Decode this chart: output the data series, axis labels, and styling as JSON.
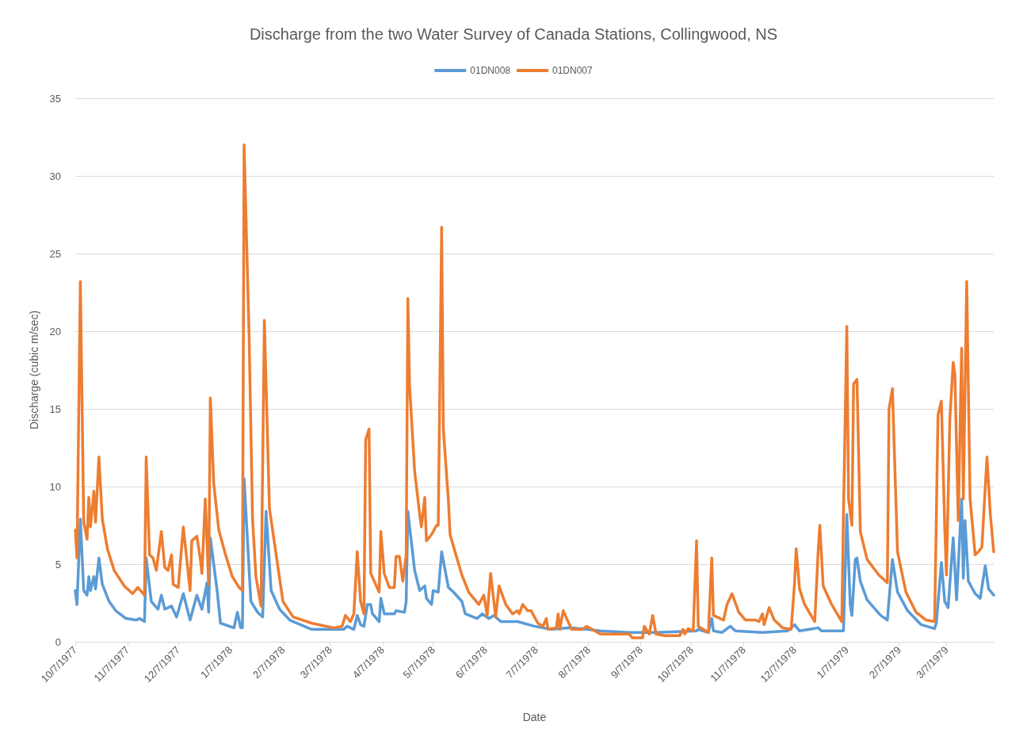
{
  "chart_data": {
    "type": "line",
    "title": "Discharge from the two Water Survey of Canada Stations, Collingwood, NS",
    "xlabel": "Date",
    "ylabel": "Discharge (cubic m/sec)",
    "xlim": [
      "1977-10-07",
      "1979-04-04"
    ],
    "xticks": [
      {
        "value": "1977-10-07",
        "label": "10/7/1977"
      },
      {
        "value": "1977-11-07",
        "label": "11/7/1977"
      },
      {
        "value": "1977-12-07",
        "label": "12/7/1977"
      },
      {
        "value": "1978-01-07",
        "label": "1/7/1978"
      },
      {
        "value": "1978-02-07",
        "label": "2/7/1978"
      },
      {
        "value": "1978-03-07",
        "label": "3/7/1978"
      },
      {
        "value": "1978-04-07",
        "label": "4/7/1978"
      },
      {
        "value": "1978-05-07",
        "label": "5/7/1978"
      },
      {
        "value": "1978-06-07",
        "label": "6/7/1978"
      },
      {
        "value": "1978-07-07",
        "label": "7/7/1978"
      },
      {
        "value": "1978-08-07",
        "label": "8/7/1978"
      },
      {
        "value": "1978-09-07",
        "label": "9/7/1978"
      },
      {
        "value": "1978-10-07",
        "label": "10/7/1978"
      },
      {
        "value": "1978-11-07",
        "label": "11/7/1978"
      },
      {
        "value": "1978-12-07",
        "label": "12/7/1978"
      },
      {
        "value": "1979-01-07",
        "label": "1/7/1979"
      },
      {
        "value": "1979-02-07",
        "label": "2/7/1979"
      },
      {
        "value": "1979-03-07",
        "label": "3/7/1979"
      }
    ],
    "ylim": [
      0,
      35
    ],
    "yticks": [
      0,
      5,
      10,
      15,
      20,
      25,
      30,
      35
    ],
    "grid": "y",
    "legend": "top",
    "marker": "none",
    "line_style": "solid",
    "series": [
      {
        "name": "01DN008",
        "color": "#5b9bd5",
        "x": [
          "1977-10-07",
          "1977-10-08",
          "1977-10-10",
          "1977-10-12",
          "1977-10-14",
          "1977-10-15",
          "1977-10-16",
          "1977-10-18",
          "1977-10-19",
          "1977-10-21",
          "1977-10-23",
          "1977-10-27",
          "1977-10-31",
          "1977-11-06",
          "1977-11-12",
          "1977-11-14",
          "1977-11-17",
          "1977-11-18",
          "1977-11-21",
          "1977-11-25",
          "1977-11-27",
          "1977-11-29",
          "1977-12-03",
          "1977-12-06",
          "1977-12-10",
          "1977-12-14",
          "1977-12-18",
          "1977-12-21",
          "1977-12-24",
          "1977-12-25",
          "1977-12-26",
          "1977-12-30",
          "1978-01-01",
          "1978-01-09",
          "1978-01-11",
          "1978-01-13",
          "1978-01-14",
          "1978-01-15",
          "1978-01-19",
          "1978-01-23",
          "1978-01-26",
          "1978-01-28",
          "1978-01-31",
          "1978-02-05",
          "1978-02-11",
          "1978-02-24",
          "1978-03-09",
          "1978-03-15",
          "1978-03-17",
          "1978-03-21",
          "1978-03-23",
          "1978-03-25",
          "1978-03-27",
          "1978-03-29",
          "1978-03-31",
          "1978-04-01",
          "1978-04-05",
          "1978-04-06",
          "1978-04-08",
          "1978-04-14",
          "1978-04-15",
          "1978-04-20",
          "1978-04-21",
          "1978-04-22",
          "1978-04-26",
          "1978-04-29",
          "1978-05-02",
          "1978-05-03",
          "1978-05-06",
          "1978-05-07",
          "1978-05-10",
          "1978-05-12",
          "1978-05-16",
          "1978-05-19",
          "1978-05-24",
          "1978-05-26",
          "1978-06-02",
          "1978-06-05",
          "1978-06-09",
          "1978-06-12",
          "1978-06-16",
          "1978-06-26",
          "1978-07-06",
          "1978-07-16",
          "1978-07-27",
          "1978-08-06",
          "1978-08-14",
          "1978-08-31",
          "1978-09-16",
          "1978-10-10",
          "1978-10-11",
          "1978-10-17",
          "1978-10-19",
          "1978-10-20",
          "1978-10-25",
          "1978-10-30",
          "1978-11-02",
          "1978-11-18",
          "1978-12-03",
          "1978-12-07",
          "1978-12-10",
          "1978-12-21",
          "1978-12-23",
          "1979-01-05",
          "1979-01-07",
          "1979-01-09",
          "1979-01-10",
          "1979-01-12",
          "1979-01-13",
          "1979-01-15",
          "1979-01-19",
          "1979-01-27",
          "1979-01-31",
          "1979-02-03",
          "1979-02-06",
          "1979-02-12",
          "1979-02-20",
          "1979-02-28",
          "1979-03-01",
          "1979-03-04",
          "1979-03-06",
          "1979-03-08",
          "1979-03-11",
          "1979-03-13",
          "1979-03-16",
          "1979-03-17",
          "1979-03-18",
          "1979-03-20",
          "1979-03-24",
          "1979-03-27",
          "1979-03-30",
          "1979-04-01",
          "1979-04-04"
        ],
        "values": [
          3.3,
          2.4,
          7.9,
          3.3,
          3.0,
          4.2,
          3.3,
          4.2,
          3.4,
          5.4,
          3.7,
          2.6,
          2.0,
          1.5,
          1.4,
          1.5,
          1.3,
          5.4,
          2.6,
          2.1,
          3.0,
          2.1,
          2.3,
          1.6,
          3.1,
          1.4,
          3.0,
          2.1,
          3.8,
          1.9,
          6.7,
          3.3,
          1.2,
          0.9,
          1.9,
          0.9,
          0.9,
          10.5,
          2.6,
          1.9,
          1.6,
          8.4,
          3.3,
          2.1,
          1.4,
          0.8,
          0.8,
          0.8,
          1.0,
          0.8,
          1.7,
          1.1,
          1.0,
          2.4,
          2.4,
          1.8,
          1.3,
          2.8,
          1.8,
          1.8,
          2.0,
          1.9,
          2.6,
          8.4,
          4.6,
          3.3,
          3.6,
          2.8,
          2.4,
          3.3,
          3.2,
          5.8,
          3.5,
          3.2,
          2.6,
          1.8,
          1.5,
          1.8,
          1.5,
          1.7,
          1.3,
          1.3,
          1.0,
          0.8,
          0.9,
          0.8,
          0.7,
          0.6,
          0.6,
          0.7,
          0.8,
          0.6,
          1.5,
          0.7,
          0.6,
          1.0,
          0.7,
          0.6,
          0.7,
          1.1,
          0.7,
          0.9,
          0.7,
          0.7,
          8.2,
          2.4,
          1.7,
          5.3,
          5.4,
          3.9,
          2.7,
          1.7,
          1.4,
          5.3,
          3.2,
          2.0,
          1.1,
          0.85,
          1.2,
          5.1,
          2.6,
          2.2,
          6.7,
          2.7,
          9.2,
          4.1,
          7.8,
          3.9,
          3.1,
          2.8,
          4.9,
          3.4,
          3.0
        ]
      },
      {
        "name": "01DN007",
        "color": "#ed7d31",
        "x": [
          "1977-10-07",
          "1977-10-08",
          "1977-10-10",
          "1977-10-12",
          "1977-10-14",
          "1977-10-15",
          "1977-10-16",
          "1977-10-18",
          "1977-10-19",
          "1977-10-21",
          "1977-10-23",
          "1977-10-26",
          "1977-10-30",
          "1977-11-05",
          "1977-11-10",
          "1977-11-13",
          "1977-11-17",
          "1977-11-18",
          "1977-11-20",
          "1977-11-22",
          "1977-11-24",
          "1977-11-27",
          "1977-11-29",
          "1977-12-01",
          "1977-12-03",
          "1977-12-04",
          "1977-12-07",
          "1977-12-10",
          "1977-12-14",
          "1977-12-15",
          "1977-12-18",
          "1977-12-20",
          "1977-12-21",
          "1977-12-23",
          "1977-12-25",
          "1977-12-26",
          "1977-12-28",
          "1977-12-31",
          "1978-01-04",
          "1978-01-08",
          "1978-01-12",
          "1978-01-14",
          "1978-01-15",
          "1978-01-18",
          "1978-01-20",
          "1978-01-22",
          "1978-01-25",
          "1978-01-27",
          "1978-01-30",
          "1978-02-03",
          "1978-02-07",
          "1978-02-13",
          "1978-02-24",
          "1978-03-09",
          "1978-03-14",
          "1978-03-16",
          "1978-03-19",
          "1978-03-21",
          "1978-03-23",
          "1978-03-25",
          "1978-03-27",
          "1978-03-28",
          "1978-03-30",
          "1978-03-31",
          "1978-04-05",
          "1978-04-06",
          "1978-04-08",
          "1978-04-11",
          "1978-04-14",
          "1978-04-15",
          "1978-04-17",
          "1978-04-19",
          "1978-04-21",
          "1978-04-22",
          "1978-04-23",
          "1978-04-26",
          "1978-04-29",
          "1978-04-30",
          "1978-05-02",
          "1978-05-03",
          "1978-05-06",
          "1978-05-09",
          "1978-05-10",
          "1978-05-12",
          "1978-05-13",
          "1978-05-16",
          "1978-05-17",
          "1978-05-21",
          "1978-05-24",
          "1978-05-28",
          "1978-05-31",
          "1978-06-03",
          "1978-06-06",
          "1978-06-08",
          "1978-06-10",
          "1978-06-13",
          "1978-06-15",
          "1978-06-19",
          "1978-06-23",
          "1978-06-26",
          "1978-06-27",
          "1978-06-29",
          "1978-07-02",
          "1978-07-04",
          "1978-07-08",
          "1978-07-11",
          "1978-07-13",
          "1978-07-14",
          "1978-07-19",
          "1978-07-20",
          "1978-07-21",
          "1978-07-23",
          "1978-07-25",
          "1978-07-28",
          "1978-08-03",
          "1978-08-06",
          "1978-08-09",
          "1978-08-14",
          "1978-08-31",
          "1978-09-02",
          "1978-09-08",
          "1978-09-09",
          "1978-09-12",
          "1978-09-14",
          "1978-09-16",
          "1978-09-21",
          "1978-09-30",
          "1978-10-02",
          "1978-10-03",
          "1978-10-05",
          "1978-10-08",
          "1978-10-10",
          "1978-10-11",
          "1978-10-17",
          "1978-10-19",
          "1978-10-20",
          "1978-10-24",
          "1978-10-26",
          "1978-10-28",
          "1978-10-31",
          "1978-11-04",
          "1978-11-08",
          "1978-11-14",
          "1978-11-16",
          "1978-11-18",
          "1978-11-19",
          "1978-11-22",
          "1978-11-25",
          "1978-11-30",
          "1978-12-05",
          "1978-12-07",
          "1978-12-08",
          "1978-12-10",
          "1978-12-13",
          "1978-12-19",
          "1978-12-21",
          "1978-12-22",
          "1978-12-24",
          "1978-12-29",
          "1979-01-04",
          "1979-01-05",
          "1979-01-07",
          "1979-01-08",
          "1979-01-10",
          "1979-01-11",
          "1979-01-13",
          "1979-01-15",
          "1979-01-19",
          "1979-01-26",
          "1979-01-31",
          "1979-02-01",
          "1979-02-03",
          "1979-02-06",
          "1979-02-11",
          "1979-02-17",
          "1979-02-23",
          "1979-02-28",
          "1979-03-02",
          "1979-03-04",
          "1979-03-06",
          "1979-03-07",
          "1979-03-09",
          "1979-03-11",
          "1979-03-12",
          "1979-03-14",
          "1979-03-16",
          "1979-03-17",
          "1979-03-19",
          "1979-03-21",
          "1979-03-24",
          "1979-03-26",
          "1979-03-28",
          "1979-03-31",
          "1979-04-02",
          "1979-04-04"
        ],
        "values": [
          7.2,
          5.4,
          23.2,
          7.7,
          6.6,
          9.3,
          7.4,
          9.7,
          7.7,
          11.9,
          7.9,
          6.0,
          4.6,
          3.6,
          3.1,
          3.5,
          3.0,
          11.9,
          5.6,
          5.4,
          4.6,
          7.1,
          4.8,
          4.6,
          5.6,
          3.7,
          3.5,
          7.4,
          3.3,
          6.5,
          6.8,
          5.4,
          4.4,
          9.2,
          3.7,
          15.7,
          10.2,
          7.2,
          5.6,
          4.2,
          3.5,
          3.3,
          32.0,
          19.5,
          7.9,
          4.2,
          2.3,
          20.7,
          8.6,
          5.6,
          2.6,
          1.6,
          1.2,
          0.9,
          1.0,
          1.7,
          1.3,
          1.8,
          5.8,
          2.6,
          1.8,
          13.0,
          13.7,
          4.4,
          3.2,
          7.1,
          4.4,
          3.5,
          3.5,
          5.5,
          5.5,
          3.9,
          5.6,
          22.1,
          16.5,
          11.0,
          8.2,
          7.4,
          9.3,
          6.5,
          6.9,
          7.5,
          7.5,
          26.7,
          13.7,
          9.1,
          6.9,
          5.4,
          4.3,
          3.2,
          2.8,
          2.4,
          3.0,
          1.7,
          4.4,
          1.6,
          3.6,
          2.4,
          1.8,
          2.0,
          1.8,
          2.4,
          2.0,
          2.0,
          1.2,
          1.0,
          1.5,
          0.8,
          0.9,
          1.8,
          0.8,
          2.0,
          1.5,
          0.8,
          0.8,
          1.0,
          0.8,
          0.5,
          0.5,
          0.25,
          0.25,
          1.0,
          0.5,
          1.7,
          0.5,
          0.4,
          0.4,
          0.8,
          0.5,
          0.85,
          0.7,
          6.5,
          1.0,
          0.6,
          5.4,
          1.7,
          1.5,
          1.4,
          2.4,
          3.1,
          1.9,
          1.4,
          1.4,
          1.3,
          1.8,
          1.1,
          2.2,
          1.4,
          0.9,
          0.8,
          3.7,
          6.0,
          3.4,
          2.4,
          1.3,
          5.8,
          7.5,
          3.6,
          2.4,
          1.3,
          8.2,
          20.3,
          9.2,
          7.5,
          16.6,
          16.9,
          7.1,
          5.3,
          4.3,
          3.8,
          15.0,
          16.3,
          5.8,
          3.2,
          1.9,
          1.4,
          1.3,
          14.6,
          15.5,
          7.3,
          4.3,
          14.3,
          18.0,
          17.2,
          7.8,
          18.9,
          9.2,
          23.2,
          9.2,
          5.6,
          5.8,
          6.1,
          11.9,
          8.2,
          5.8
        ]
      }
    ]
  }
}
